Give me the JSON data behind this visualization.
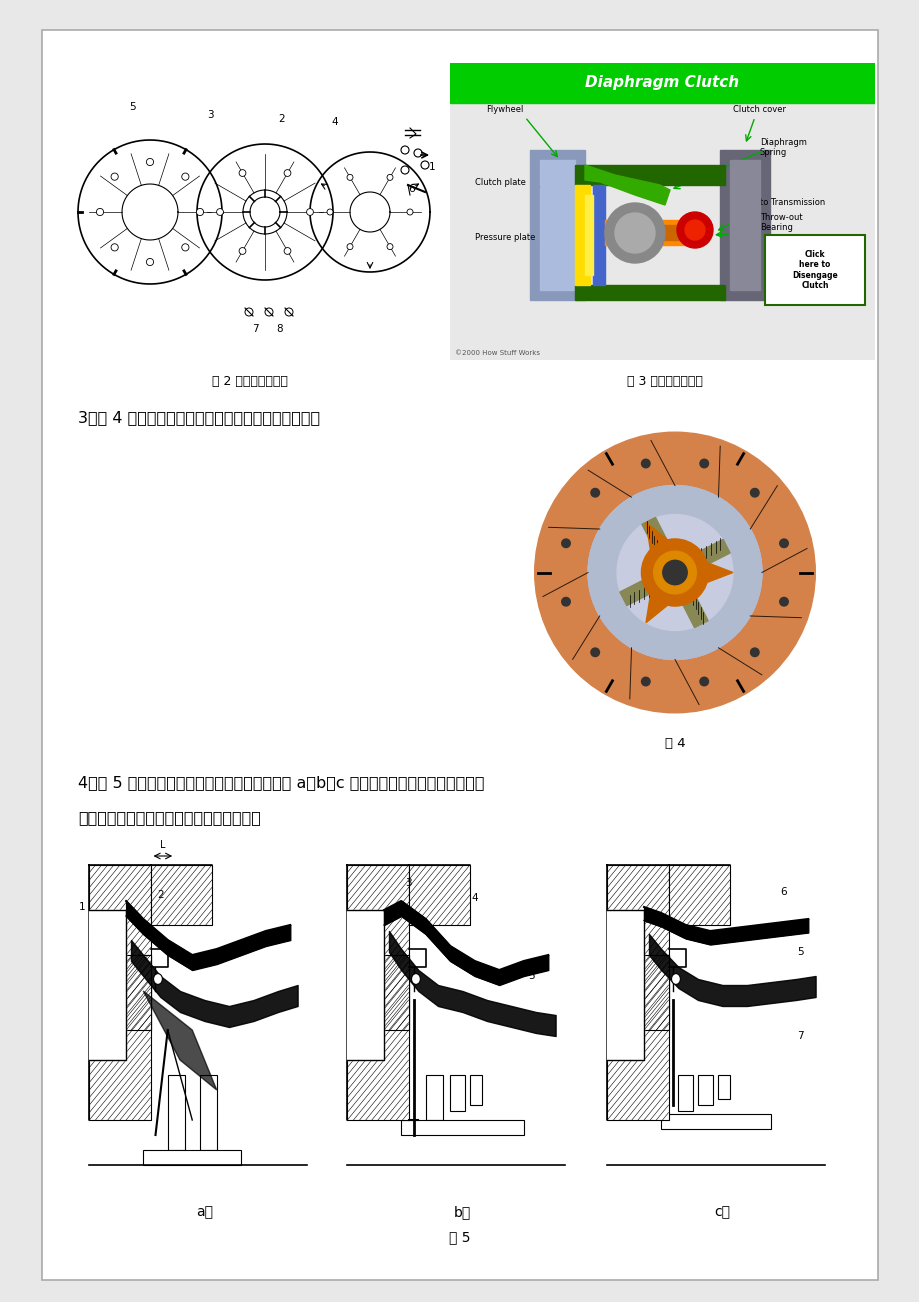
{
  "page_bg": "#ffffff",
  "outer_bg": "#e8e8e8",
  "border_color": "#999999",
  "text_color": "#000000",
  "page_width": 9.2,
  "page_height": 13.02,
  "section3_question": "3、图 4 摩擦片中的弹簧名称是什么？它有什么作用？",
  "section4_question": "4、图 5 为膜片弹簧离合器的工作原理，请写出 a、b、c 图各是离合器的什么工作状态？",
  "section4_sub": "（安装前位置、分离后位置、安装后位置）",
  "fig2_caption": "图 2 膜片弹簧离合器",
  "fig3_caption": "图 3 膜片弹簧离合器",
  "fig4_caption": "图 4",
  "fig5_caption": "图 5",
  "sub_a": "a）",
  "sub_b": "b）",
  "sub_c": "c）",
  "diaphragm_title": "Diaphragm Clutch",
  "diaphragm_bg": "#00cc00"
}
